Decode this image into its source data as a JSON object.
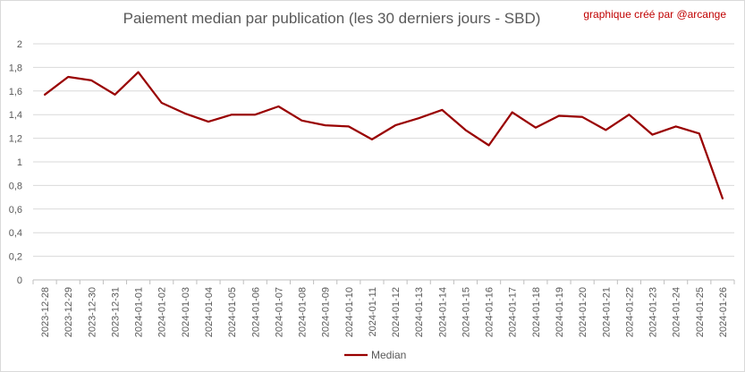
{
  "chart_data": {
    "type": "line",
    "title": "Paiement median par publication (les 30 derniers jours - SBD)",
    "credit": "graphique créé par @arcange",
    "x": [
      "2023-12-28",
      "2023-12-29",
      "2023-12-30",
      "2023-12-31",
      "2024-01-01",
      "2024-01-02",
      "2024-01-03",
      "2024-01-04",
      "2024-01-05",
      "2024-01-06",
      "2024-01-07",
      "2024-01-08",
      "2024-01-09",
      "2024-01-10",
      "2024-01-11",
      "2024-01-12",
      "2024-01-13",
      "2024-01-14",
      "2024-01-15",
      "2024-01-16",
      "2024-01-17",
      "2024-01-18",
      "2024-01-19",
      "2024-01-20",
      "2024-01-21",
      "2024-01-22",
      "2024-01-23",
      "2024-01-24",
      "2024-01-25",
      "2024-01-26"
    ],
    "series": [
      {
        "name": "Median",
        "color": "#990000",
        "values": [
          1.57,
          1.72,
          1.69,
          1.57,
          1.76,
          1.5,
          1.41,
          1.34,
          1.4,
          1.4,
          1.47,
          1.35,
          1.31,
          1.3,
          1.19,
          1.31,
          1.37,
          1.44,
          1.27,
          1.14,
          1.42,
          1.29,
          1.39,
          1.38,
          1.27,
          1.4,
          1.23,
          1.3,
          1.24,
          0.69
        ]
      }
    ],
    "yticks": [
      "0",
      "0,2",
      "0,4",
      "0,6",
      "0,8",
      "1",
      "1,2",
      "1,4",
      "1,6",
      "1,8",
      "2"
    ],
    "ylim": [
      0,
      2
    ],
    "grid": true,
    "legend": "bottom"
  }
}
